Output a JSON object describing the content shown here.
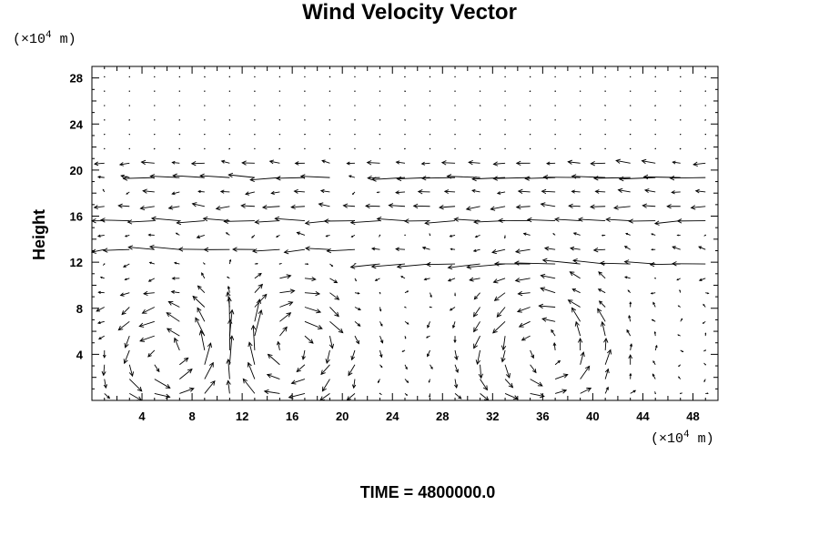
{
  "chart_data": {
    "type": "vector_field",
    "title": "Wind Velocity Vector",
    "ylabel": "Height",
    "xlabel": "",
    "x_unit_label": "(×10",
    "x_unit_exp": "4",
    "x_unit_tail": " m)",
    "y_unit_label": "(×10",
    "y_unit_exp": "4",
    "y_unit_tail": " m)",
    "xlim": [
      0,
      50
    ],
    "ylim": [
      0,
      29
    ],
    "x_ticks": [
      4,
      8,
      12,
      16,
      20,
      24,
      28,
      32,
      36,
      40,
      44,
      48
    ],
    "y_ticks": [
      4,
      8,
      12,
      16,
      20,
      24,
      28
    ],
    "grid_x_step": 2,
    "grid_y_step": 1.25,
    "jets": [
      {
        "y": 20,
        "strength": -1.2,
        "x_from": 0,
        "x_to": 50
      },
      {
        "y": 19,
        "strength": -2.2,
        "x_from": 25,
        "x_to": 50
      },
      {
        "y": 19,
        "strength": -1.8,
        "x_from": 6,
        "x_to": 18
      },
      {
        "y": 16,
        "strength": -2.6,
        "x_from": 0,
        "x_to": 50
      },
      {
        "y": 13.2,
        "strength": -2.0,
        "x_from": 0,
        "x_to": 20
      },
      {
        "y": 12,
        "strength": -2.4,
        "x_from": 24,
        "x_to": 50
      }
    ],
    "vortices": [
      {
        "cx": 6,
        "cy": 4,
        "r": 4.5,
        "strength": 3.0
      },
      {
        "cx": 16,
        "cy": 4.5,
        "r": 4.5,
        "strength": -3.0
      },
      {
        "cx": 36,
        "cy": 4.5,
        "r": 5.5,
        "strength": 2.6
      }
    ],
    "updrafts": [
      {
        "x": 2,
        "strength": 3.2
      },
      {
        "x": 12,
        "strength": 3.6
      },
      {
        "x": 20,
        "strength": 2.6
      }
    ],
    "time_label": "TIME = 4800000.0"
  }
}
